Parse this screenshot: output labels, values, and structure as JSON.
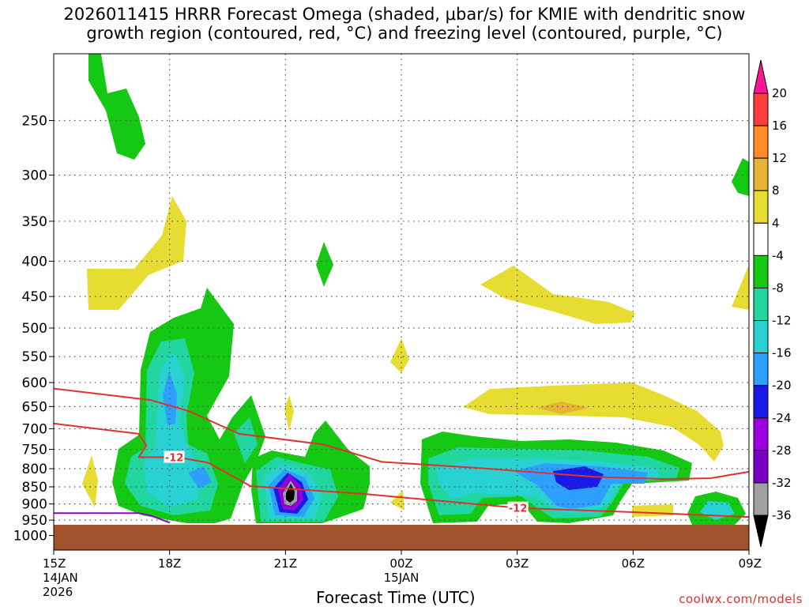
{
  "chart_data": {
    "type": "contour",
    "title_line1": "2026011415 HRRR Forecast Omega (shaded, μbar/s) for KMIE with dendritic snow",
    "title_line2": "growth region (contoured, red, °C) and freezing level (contoured, purple, °C)",
    "xlabel": "Forecast Time (UTC)",
    "y_axis": {
      "quantity": "pressure (mb)",
      "range": [
        200,
        1050
      ],
      "log": true,
      "inverted": true,
      "ticks": [
        250,
        300,
        350,
        400,
        450,
        500,
        550,
        600,
        650,
        700,
        750,
        800,
        850,
        900,
        950,
        1000
      ]
    },
    "x_axis": {
      "quantity": "forecast hour from 15Z 14JAN2026",
      "range": [
        0,
        18
      ],
      "ticks": [
        {
          "hour": 0,
          "label": "15Z",
          "sub1": "14JAN",
          "sub2": "2026"
        },
        {
          "hour": 3,
          "label": "18Z"
        },
        {
          "hour": 6,
          "label": "21Z"
        },
        {
          "hour": 9,
          "label": "00Z",
          "sub1": "15JAN"
        },
        {
          "hour": 12,
          "label": "03Z"
        },
        {
          "hour": 15,
          "label": "06Z"
        },
        {
          "hour": 18,
          "label": "09Z"
        }
      ]
    },
    "colorbar": {
      "units": "μbar/s",
      "levels": [
        -36,
        -32,
        -28,
        -24,
        -20,
        -16,
        -12,
        -8,
        -4,
        4,
        8,
        12,
        16,
        20
      ],
      "colors_bottom_to_top": [
        "#000000",
        "#a0a0a0",
        "#7a00c8",
        "#9c00e0",
        "#1a1ae6",
        "#2da0ff",
        "#28d2d2",
        "#22d6a0",
        "#14c814",
        "#ffffff",
        "#e6dc32",
        "#e6b432",
        "#ff8c28",
        "#ff3c3c",
        "#ff1493"
      ]
    },
    "contour_labels": [
      {
        "text": "-12",
        "color": "#e03030",
        "hour": 3.1,
        "pressure": 770
      },
      {
        "text": "-12",
        "color": "#e03030",
        "hour": 12.0,
        "pressure": 912
      }
    ],
    "dgz_top_line": {
      "color": "#e03030",
      "points": [
        [
          0,
          612
        ],
        [
          2.5,
          636
        ],
        [
          3.5,
          660
        ],
        [
          4.8,
          712
        ],
        [
          7.0,
          738
        ],
        [
          8.5,
          782
        ],
        [
          11,
          798
        ],
        [
          14,
          822
        ],
        [
          15.8,
          828
        ],
        [
          17,
          826
        ],
        [
          18,
          808
        ]
      ]
    },
    "dgz_bottom_line": {
      "color": "#e03030",
      "points": [
        [
          0,
          688
        ],
        [
          2.2,
          712
        ],
        [
          2.4,
          740
        ],
        [
          2.2,
          770
        ],
        [
          3.2,
          770
        ],
        [
          4.0,
          784
        ],
        [
          5.1,
          848
        ],
        [
          8.0,
          870
        ],
        [
          10.5,
          896
        ],
        [
          12,
          912
        ],
        [
          15,
          925
        ],
        [
          18,
          940
        ]
      ]
    },
    "freezing_line": {
      "color": "#9400d3",
      "points": [
        [
          0,
          928
        ],
        [
          2.2,
          928
        ],
        [
          2.5,
          935
        ],
        [
          3.0,
          958
        ]
      ]
    },
    "surface": {
      "color": "#a0522d",
      "pressure_top": 965
    }
  },
  "credit": "coolwx.com/models"
}
